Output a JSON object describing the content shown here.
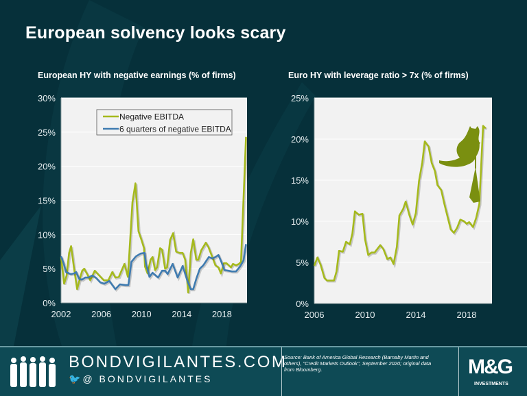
{
  "title": "European solvency looks scary",
  "chart_data": [
    {
      "type": "line",
      "title": "European HY with negative earnings (% of firms)",
      "xlim": [
        2002,
        2020.5
      ],
      "ylim": [
        0,
        30
      ],
      "x_ticks": [
        2002,
        2006,
        2010,
        2014,
        2018
      ],
      "x_tick_labels": [
        "2002",
        "2006",
        "2010",
        "2014",
        "2018"
      ],
      "y_ticks": [
        0,
        5,
        10,
        15,
        20,
        25,
        30
      ],
      "y_tick_labels": [
        "0%",
        "5%",
        "10%",
        "15%",
        "20%",
        "25%",
        "30%"
      ],
      "grid": true,
      "legend": "top-right",
      "series": [
        {
          "name": "Negative EBITDA",
          "color": "#a5b91c",
          "x": [
            2002.0,
            2002.3,
            2002.55,
            2002.8,
            2003.0,
            2003.3,
            2003.6,
            2003.9,
            2004.1,
            2004.3,
            2004.6,
            2004.9,
            2005.35,
            2005.8,
            2006.25,
            2006.7,
            2007.1,
            2007.4,
            2007.75,
            2008.3,
            2008.65,
            2009.1,
            2009.4,
            2009.7,
            2010.0,
            2010.25,
            2010.35,
            2010.6,
            2010.9,
            2011.1,
            2011.35,
            2011.55,
            2011.85,
            2012.05,
            2012.35,
            2012.55,
            2012.85,
            2013.15,
            2013.45,
            2013.8,
            2014.1,
            2014.35,
            2014.65,
            2014.9,
            2015.15,
            2015.45,
            2015.65,
            2015.95,
            2016.4,
            2016.65,
            2017.1,
            2017.35,
            2017.65,
            2017.9,
            2018.2,
            2018.45,
            2018.9,
            2019.1,
            2019.4,
            2019.7,
            2019.9,
            2020.4
          ],
          "y": [
            6.7,
            2.8,
            4.0,
            7.3,
            8.3,
            5.0,
            2.0,
            3.7,
            4.7,
            5.0,
            4.2,
            3.3,
            4.7,
            4.0,
            3.3,
            3.3,
            4.5,
            3.7,
            3.8,
            5.7,
            3.8,
            14.7,
            17.5,
            10.5,
            9.2,
            8.0,
            5.3,
            4.3,
            6.3,
            6.7,
            4.8,
            5.2,
            8.0,
            7.8,
            5.0,
            5.2,
            9.2,
            10.2,
            7.5,
            7.3,
            7.3,
            6.3,
            1.5,
            7.3,
            9.3,
            6.3,
            6.3,
            7.7,
            8.8,
            8.2,
            6.5,
            5.5,
            5.2,
            4.3,
            5.8,
            5.8,
            5.2,
            5.7,
            5.5,
            5.7,
            6.0,
            24.3
          ]
        },
        {
          "name": "6 quarters of negative EBITDA",
          "color": "#3f7bb0",
          "x": [
            2002.0,
            2002.25,
            2002.5,
            2002.95,
            2003.3,
            2003.5,
            2003.8,
            2004.1,
            2004.4,
            2004.7,
            2005.1,
            2005.45,
            2005.9,
            2006.3,
            2006.8,
            2007.05,
            2007.4,
            2007.85,
            2008.4,
            2008.7,
            2009.0,
            2009.45,
            2009.9,
            2010.3,
            2010.45,
            2010.8,
            2011.1,
            2011.65,
            2012.05,
            2012.35,
            2012.6,
            2013.1,
            2013.6,
            2014.1,
            2014.55,
            2014.9,
            2015.15,
            2015.45,
            2015.8,
            2016.15,
            2016.7,
            2017.05,
            2017.35,
            2017.65,
            2017.95,
            2018.25,
            2018.65,
            2019.0,
            2019.4,
            2019.8,
            2020.15,
            2020.4
          ],
          "y": [
            6.8,
            5.8,
            4.5,
            4.2,
            4.3,
            4.5,
            3.5,
            3.4,
            3.7,
            3.7,
            4.0,
            3.7,
            3.0,
            2.8,
            3.2,
            2.7,
            2.0,
            2.7,
            2.6,
            2.6,
            6.0,
            6.8,
            7.2,
            7.3,
            5.7,
            3.8,
            4.4,
            3.7,
            4.7,
            4.7,
            4.2,
            5.7,
            3.7,
            5.4,
            3.3,
            2.0,
            2.0,
            3.5,
            5.0,
            5.5,
            6.7,
            6.5,
            6.7,
            7.0,
            6.0,
            4.8,
            4.7,
            4.6,
            4.6,
            5.3,
            6.2,
            8.6
          ]
        }
      ]
    },
    {
      "type": "line",
      "title": "Euro HY with leverage ratio > 7x (% of firms)",
      "xlim": [
        2006,
        2020
      ],
      "ylim": [
        0,
        25
      ],
      "x_ticks": [
        2006,
        2010,
        2014,
        2018
      ],
      "x_tick_labels": [
        "2006",
        "2010",
        "2014",
        "2018"
      ],
      "y_ticks": [
        0,
        5,
        10,
        15,
        20,
        25
      ],
      "y_tick_labels": [
        "0%",
        "5%",
        "10%",
        "15%",
        "20%",
        "25%"
      ],
      "grid": true,
      "annotation_icon": "witch-cat-on-broom-icon",
      "series": [
        {
          "color": "#a5b91c",
          "x": [
            2006.0,
            2006.25,
            2006.5,
            2006.8,
            2007.0,
            2007.55,
            2007.75,
            2007.95,
            2008.25,
            2008.5,
            2008.8,
            2009.0,
            2009.2,
            2009.5,
            2009.8,
            2010.0,
            2010.25,
            2010.5,
            2010.75,
            2011.0,
            2011.2,
            2011.45,
            2011.75,
            2012.0,
            2012.25,
            2012.5,
            2012.7,
            2013.0,
            2013.2,
            2013.5,
            2013.75,
            2014.0,
            2014.25,
            2014.5,
            2014.7,
            2015.0,
            2015.25,
            2015.5,
            2015.7,
            2016.0,
            2016.25,
            2016.75,
            2017.0,
            2017.25,
            2017.5,
            2017.8,
            2018.0,
            2018.2,
            2018.5,
            2018.75,
            2019.0,
            2019.3,
            2019.5
          ],
          "y": [
            4.6,
            5.6,
            4.7,
            3.1,
            2.8,
            2.8,
            3.9,
            6.4,
            6.3,
            7.5,
            7.2,
            8.5,
            11.2,
            10.8,
            10.9,
            7.8,
            5.9,
            6.2,
            6.2,
            6.7,
            7.1,
            6.6,
            5.4,
            5.6,
            4.8,
            6.9,
            10.7,
            11.5,
            12.4,
            10.7,
            9.6,
            11.0,
            14.9,
            17.1,
            19.7,
            19.1,
            17.1,
            16.1,
            14.4,
            13.8,
            12.1,
            9.0,
            8.6,
            9.2,
            10.2,
            10.0,
            9.7,
            9.9,
            9.3,
            10.4,
            12.1,
            21.6,
            21.3
          ]
        }
      ]
    }
  ],
  "footer": {
    "site": "BONDVIGILANTES.COM",
    "handle": "@ BONDVIGILANTES",
    "source": "Source: Bank of America Global Research (Barnaby Martin and others), \"Credit Markets Outlook\", September 2020; original data from Bloomberg.",
    "logo_text": "M&G",
    "logo_sub": "INVESTMENTS"
  },
  "colors": {
    "background": "#06303a",
    "footer": "#0e4a55",
    "plot_bg": "#f2f2f2",
    "accent_green": "#a5b91c",
    "accent_blue": "#3f7bb0"
  }
}
